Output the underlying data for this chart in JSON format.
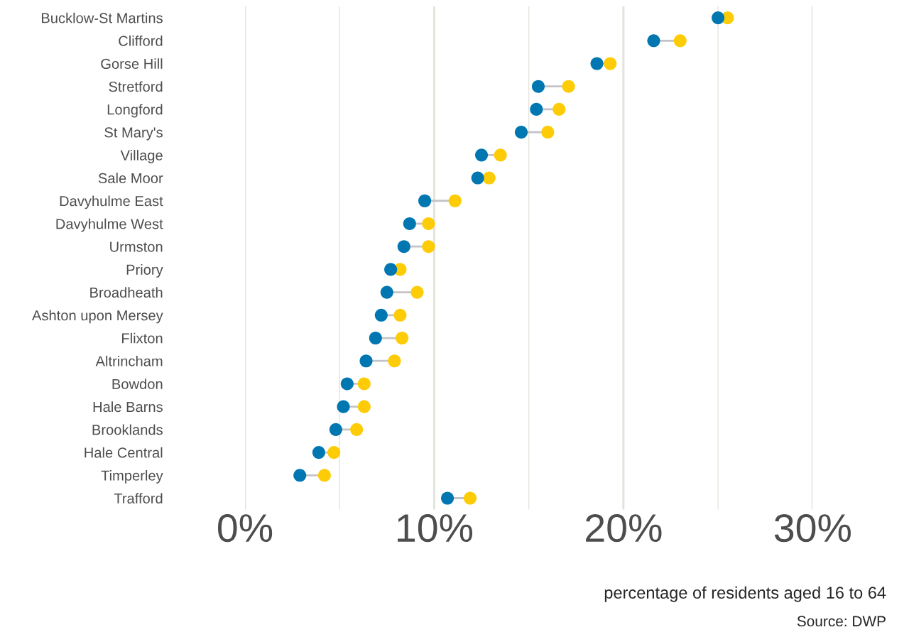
{
  "chart_data": {
    "type": "scatter",
    "orientation": "horizontal",
    "xlabel": "percentage of residents aged 16 to 64",
    "annotations": [
      "Source: DWP"
    ],
    "categories": [
      "Bucklow-St Martins",
      "Clifford",
      "Gorse Hill",
      "Stretford",
      "Longford",
      "St Mary's",
      "Village",
      "Sale Moor",
      "Davyhulme East",
      "Davyhulme West",
      "Urmston",
      "Priory",
      "Broadheath",
      "Ashton upon Mersey",
      "Flixton",
      "Altrincham",
      "Bowdon",
      "Hale Barns",
      "Brooklands",
      "Hale Central",
      "Timperley",
      "Trafford"
    ],
    "series": [
      {
        "color": "#0077b1",
        "values": [
          25.0,
          21.6,
          18.6,
          15.5,
          15.4,
          14.6,
          12.5,
          12.3,
          9.5,
          8.7,
          8.4,
          7.7,
          7.5,
          7.2,
          6.9,
          6.4,
          5.4,
          5.2,
          4.8,
          3.9,
          2.9,
          10.7
        ]
      },
      {
        "color": "#fdcc07",
        "values": [
          25.5,
          23.0,
          19.3,
          17.1,
          16.6,
          16.0,
          13.5,
          12.9,
          11.1,
          9.7,
          9.7,
          8.2,
          9.1,
          8.2,
          8.3,
          7.9,
          6.3,
          6.3,
          5.9,
          4.7,
          4.2,
          11.9
        ]
      }
    ],
    "xticks": [
      {
        "value": 0,
        "label": "0%"
      },
      {
        "value": 5,
        "label": null
      },
      {
        "value": 10,
        "label": "10%"
      },
      {
        "value": 15,
        "label": null
      },
      {
        "value": 20,
        "label": "20%"
      },
      {
        "value": 25,
        "label": null
      },
      {
        "value": 30,
        "label": "30%"
      }
    ],
    "xlim": [
      0,
      30
    ],
    "grid": "x",
    "marker": "circle",
    "legend": false
  }
}
